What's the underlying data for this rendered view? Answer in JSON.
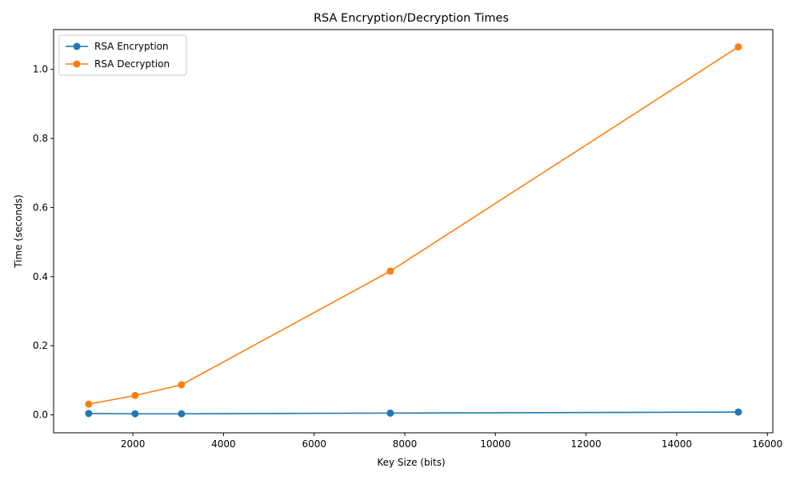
{
  "chart_data": {
    "type": "line",
    "title": "RSA Encryption/Decryption Times",
    "xlabel": "Key Size (bits)",
    "ylabel": "Time (seconds)",
    "xlim": [
      250,
      16120
    ],
    "ylim": [
      -0.052,
      1.115
    ],
    "xticks": [
      2000,
      4000,
      6000,
      8000,
      10000,
      12000,
      14000,
      16000
    ],
    "yticks": [
      0.0,
      0.2,
      0.4,
      0.6,
      0.8,
      1.0
    ],
    "grid": false,
    "legend_position": "top-left",
    "x": [
      1024,
      2048,
      3072,
      7680,
      15360
    ],
    "series": [
      {
        "name": "RSA Encryption",
        "color": "#1f77b4",
        "values": [
          0.004,
          0.003,
          0.003,
          0.005,
          0.008
        ]
      },
      {
        "name": "RSA Decryption",
        "color": "#ff7f0e",
        "values": [
          0.031,
          0.056,
          0.087,
          0.416,
          1.065
        ]
      }
    ]
  }
}
